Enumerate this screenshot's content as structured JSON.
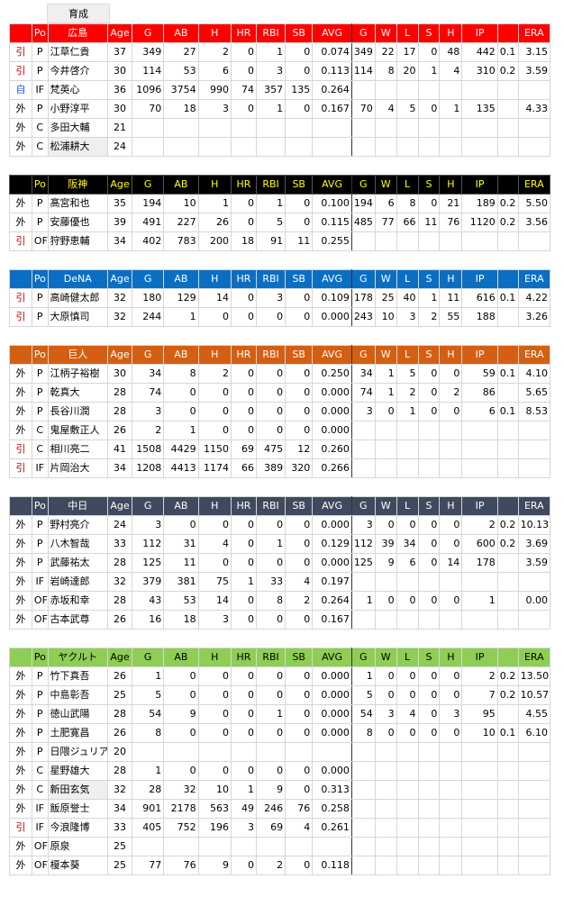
{
  "top_tab": "育成",
  "columns": [
    "",
    "Po",
    "",
    "Age",
    "G",
    "AB",
    "H",
    "HR",
    "RBI",
    "SB",
    "AVG",
    "G",
    "W",
    "L",
    "S",
    "H",
    "IP",
    "",
    "ERA"
  ],
  "colors": {
    "in_tag": "#c00000",
    "self_tag": "#1f5fd0",
    "separator": "#333333"
  },
  "teams": [
    {
      "name": "広島",
      "bg": "#ff0000",
      "fg": "#ffffff",
      "hl": "#ffffff",
      "players": [
        [
          "引",
          "P",
          "江草仁貴",
          "37",
          "349",
          "27",
          "2",
          "0",
          "1",
          "0",
          "0.074",
          "349",
          "22",
          "17",
          "0",
          "48",
          "442",
          "0.1",
          "3.15"
        ],
        [
          "引",
          "P",
          "今井啓介",
          "30",
          "114",
          "53",
          "6",
          "0",
          "3",
          "0",
          "0.113",
          "114",
          "8",
          "20",
          "1",
          "4",
          "310",
          "0.2",
          "3.59"
        ],
        [
          "自",
          "IF",
          "梵英心",
          "36",
          "1096",
          "3754",
          "990",
          "74",
          "357",
          "135",
          "0.264",
          "",
          "",
          "",
          "",
          "",
          "",
          "",
          ""
        ],
        [
          "外",
          "P",
          "小野淳平",
          "30",
          "70",
          "18",
          "3",
          "0",
          "1",
          "0",
          "0.167",
          "70",
          "4",
          "5",
          "0",
          "1",
          "135",
          "",
          "4.33"
        ],
        [
          "外",
          "C",
          "多田大輔",
          "21",
          "",
          "",
          "",
          "",
          "",
          "",
          "",
          "",
          "",
          "",
          "",
          "",
          "",
          "",
          ""
        ],
        [
          "外",
          "C",
          "松浦耕大",
          "24",
          "",
          "",
          "",
          "",
          "",
          "",
          "",
          "",
          "",
          "",
          "",
          "",
          "",
          "",
          ""
        ]
      ]
    },
    {
      "name": "阪神",
      "bg": "#000000",
      "fg": "#ffffff",
      "hl": "#ffff00",
      "players": [
        [
          "外",
          "P",
          "髙宮和也",
          "35",
          "194",
          "10",
          "1",
          "0",
          "1",
          "0",
          "0.100",
          "194",
          "6",
          "8",
          "0",
          "21",
          "189",
          "0.2",
          "5.50"
        ],
        [
          "外",
          "P",
          "安藤優也",
          "39",
          "491",
          "227",
          "26",
          "0",
          "5",
          "0",
          "0.115",
          "485",
          "77",
          "66",
          "11",
          "76",
          "1120",
          "0.2",
          "3.56"
        ],
        [
          "引",
          "OF",
          "狩野恵輔",
          "34",
          "402",
          "783",
          "200",
          "18",
          "91",
          "11",
          "0.255",
          "",
          "",
          "",
          "",
          "",
          "",
          "",
          ""
        ]
      ]
    },
    {
      "name": "DeNA",
      "bg": "#0a6fc2",
      "fg": "#ffffff",
      "hl": "#ffffff",
      "players": [
        [
          "引",
          "P",
          "高崎健太郎",
          "32",
          "180",
          "129",
          "14",
          "0",
          "3",
          "0",
          "0.109",
          "178",
          "25",
          "40",
          "1",
          "11",
          "616",
          "0.1",
          "4.22"
        ],
        [
          "引",
          "P",
          "大原慎司",
          "32",
          "244",
          "1",
          "0",
          "0",
          "0",
          "0",
          "0.000",
          "243",
          "10",
          "3",
          "2",
          "55",
          "188",
          "",
          "3.26"
        ]
      ]
    },
    {
      "name": "巨人",
      "bg": "#d45f12",
      "fg": "#ffffff",
      "hl": "#ffffff",
      "players": [
        [
          "外",
          "P",
          "江柄子裕樹",
          "30",
          "34",
          "8",
          "2",
          "0",
          "0",
          "0",
          "0.250",
          "34",
          "1",
          "5",
          "0",
          "0",
          "59",
          "0.1",
          "4.10"
        ],
        [
          "外",
          "P",
          "乾真大",
          "28",
          "74",
          "0",
          "0",
          "0",
          "0",
          "0",
          "0.000",
          "74",
          "1",
          "2",
          "0",
          "2",
          "86",
          "",
          "5.65"
        ],
        [
          "外",
          "P",
          "長谷川潤",
          "28",
          "3",
          "0",
          "0",
          "0",
          "0",
          "0",
          "0.000",
          "3",
          "0",
          "1",
          "0",
          "0",
          "6",
          "0.1",
          "8.53"
        ],
        [
          "外",
          "C",
          "鬼屋敷正人",
          "26",
          "2",
          "1",
          "0",
          "0",
          "0",
          "0",
          "0.000",
          "",
          "",
          "",
          "",
          "",
          "",
          "",
          ""
        ],
        [
          "引",
          "C",
          "相川亮二",
          "41",
          "1508",
          "4429",
          "1150",
          "69",
          "475",
          "12",
          "0.260",
          "",
          "",
          "",
          "",
          "",
          "",
          "",
          ""
        ],
        [
          "引",
          "IF",
          "片岡治大",
          "34",
          "1208",
          "4413",
          "1174",
          "66",
          "389",
          "320",
          "0.266",
          "",
          "",
          "",
          "",
          "",
          "",
          "",
          ""
        ]
      ]
    },
    {
      "name": "中日",
      "bg": "#3f4a5e",
      "fg": "#ffffff",
      "hl": "#ffffff",
      "players": [
        [
          "外",
          "P",
          "野村亮介",
          "24",
          "3",
          "0",
          "0",
          "0",
          "0",
          "0",
          "0.000",
          "3",
          "0",
          "0",
          "0",
          "0",
          "2",
          "0.2",
          "10.13"
        ],
        [
          "外",
          "P",
          "八木智哉",
          "33",
          "112",
          "31",
          "4",
          "0",
          "1",
          "0",
          "0.129",
          "112",
          "39",
          "34",
          "0",
          "0",
          "600",
          "0.2",
          "3.69"
        ],
        [
          "外",
          "P",
          "武藤祐太",
          "28",
          "125",
          "11",
          "0",
          "0",
          "0",
          "0",
          "0.000",
          "125",
          "9",
          "6",
          "0",
          "14",
          "178",
          "",
          "3.59"
        ],
        [
          "外",
          "IF",
          "岩崎達郎",
          "32",
          "379",
          "381",
          "75",
          "1",
          "33",
          "4",
          "0.197",
          "",
          "",
          "",
          "",
          "",
          "",
          "",
          ""
        ],
        [
          "外",
          "OF",
          "赤坂和幸",
          "28",
          "43",
          "53",
          "14",
          "0",
          "8",
          "2",
          "0.264",
          "1",
          "0",
          "0",
          "0",
          "0",
          "1",
          "",
          "0.00"
        ],
        [
          "外",
          "OF",
          "古本武尊",
          "26",
          "16",
          "18",
          "3",
          "0",
          "0",
          "0",
          "0.167",
          "",
          "",
          "",
          "",
          "",
          "",
          "",
          ""
        ]
      ]
    },
    {
      "name": "ヤクルト",
      "bg": "#8fce55",
      "fg": "#000000",
      "hl": "#000000",
      "players": [
        [
          "外",
          "P",
          "竹下真吾",
          "26",
          "1",
          "0",
          "0",
          "0",
          "0",
          "0",
          "0.000",
          "1",
          "0",
          "0",
          "0",
          "0",
          "2",
          "0.2",
          "13.50"
        ],
        [
          "外",
          "P",
          "中島彰吾",
          "25",
          "5",
          "0",
          "0",
          "0",
          "0",
          "0",
          "0.000",
          "5",
          "0",
          "0",
          "0",
          "0",
          "7",
          "0.2",
          "10.57"
        ],
        [
          "外",
          "P",
          "徳山武陽",
          "28",
          "54",
          "9",
          "0",
          "0",
          "1",
          "0",
          "0.000",
          "54",
          "3",
          "4",
          "0",
          "3",
          "95",
          "",
          "4.55"
        ],
        [
          "外",
          "P",
          "土肥寛昌",
          "26",
          "8",
          "0",
          "0",
          "0",
          "0",
          "0",
          "0.000",
          "8",
          "0",
          "0",
          "0",
          "0",
          "10",
          "0.1",
          "6.10"
        ],
        [
          "外",
          "P",
          "日隈ジュリアス",
          "20",
          "",
          "",
          "",
          "",
          "",
          "",
          "",
          "",
          "",
          "",
          "",
          "",
          "",
          "",
          ""
        ],
        [
          "外",
          "C",
          "星野雄大",
          "28",
          "1",
          "0",
          "0",
          "0",
          "0",
          "0",
          "0.000",
          "",
          "",
          "",
          "",
          "",
          "",
          "",
          ""
        ],
        [
          "外",
          "C",
          "新田玄気",
          "32",
          "28",
          "32",
          "10",
          "1",
          "9",
          "0",
          "0.313",
          "",
          "",
          "",
          "",
          "",
          "",
          "",
          ""
        ],
        [
          "外",
          "IF",
          "飯原誉士",
          "34",
          "901",
          "2178",
          "563",
          "49",
          "246",
          "76",
          "0.258",
          "",
          "",
          "",
          "",
          "",
          "",
          "",
          ""
        ],
        [
          "引",
          "IF",
          "今浪隆博",
          "33",
          "405",
          "752",
          "196",
          "3",
          "69",
          "4",
          "0.261",
          "",
          "",
          "",
          "",
          "",
          "",
          "",
          ""
        ],
        [
          "外",
          "OF",
          "原泉",
          "25",
          "",
          "",
          "",
          "",
          "",
          "",
          "",
          "",
          "",
          "",
          "",
          "",
          "",
          "",
          ""
        ],
        [
          "外",
          "OF",
          "榎本葵",
          "25",
          "77",
          "76",
          "9",
          "0",
          "2",
          "0",
          "0.118",
          "",
          "",
          "",
          "",
          "",
          "",
          "",
          ""
        ]
      ]
    }
  ]
}
